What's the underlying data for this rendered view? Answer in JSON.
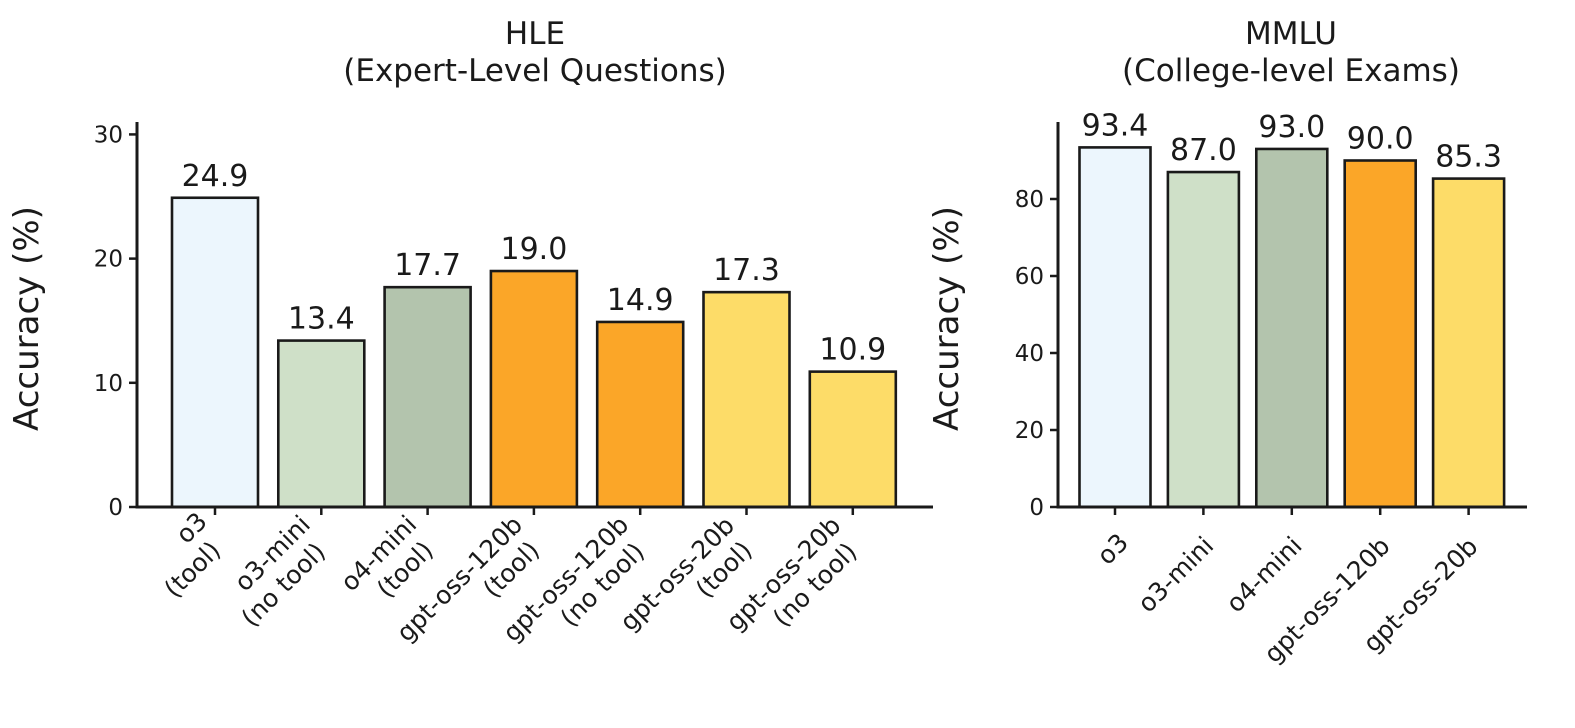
{
  "chart_data": [
    {
      "type": "bar",
      "title": [
        "HLE",
        "(Expert-Level Questions)"
      ],
      "ylabel": "Accuracy (%)",
      "ylim": [
        0,
        31
      ],
      "yticks": [
        0,
        10,
        20,
        30
      ],
      "categories": [
        [
          "o3",
          "(tool)"
        ],
        [
          "o3-mini",
          "(no tool)"
        ],
        [
          "o4-mini",
          "(tool)"
        ],
        [
          "gpt-oss-120b",
          "(tool)"
        ],
        [
          "gpt-oss-120b",
          "(no tool)"
        ],
        [
          "gpt-oss-20b",
          "(tool)"
        ],
        [
          "gpt-oss-20b",
          "(no tool)"
        ]
      ],
      "values": [
        24.9,
        13.4,
        17.7,
        19.0,
        14.9,
        17.3,
        10.9
      ],
      "value_labels": [
        "24.9",
        "13.4",
        "17.7",
        "19.0",
        "14.9",
        "17.3",
        "10.9"
      ],
      "colors": [
        "#ecf6fd",
        "#cfe0c8",
        "#b3c4ad",
        "#fba628",
        "#fba628",
        "#fddc68",
        "#fddc68"
      ],
      "grid": false,
      "legend": "none"
    },
    {
      "type": "bar",
      "title": [
        "MMLU",
        "(College-level Exams)"
      ],
      "ylabel": "Accuracy (%)",
      "ylim": [
        0,
        100
      ],
      "yticks": [
        0,
        20,
        40,
        60,
        80
      ],
      "categories": [
        [
          "o3"
        ],
        [
          "o3-mini"
        ],
        [
          "o4-mini"
        ],
        [
          "gpt-oss-120b"
        ],
        [
          "gpt-oss-20b"
        ]
      ],
      "values": [
        93.4,
        87.0,
        93.0,
        90.0,
        85.3
      ],
      "value_labels": [
        "93.4",
        "87.0",
        "93.0",
        "90.0",
        "85.3"
      ],
      "colors": [
        "#ecf6fd",
        "#cfe0c8",
        "#b3c4ad",
        "#fba628",
        "#fddc68"
      ],
      "grid": false,
      "legend": "none"
    }
  ]
}
